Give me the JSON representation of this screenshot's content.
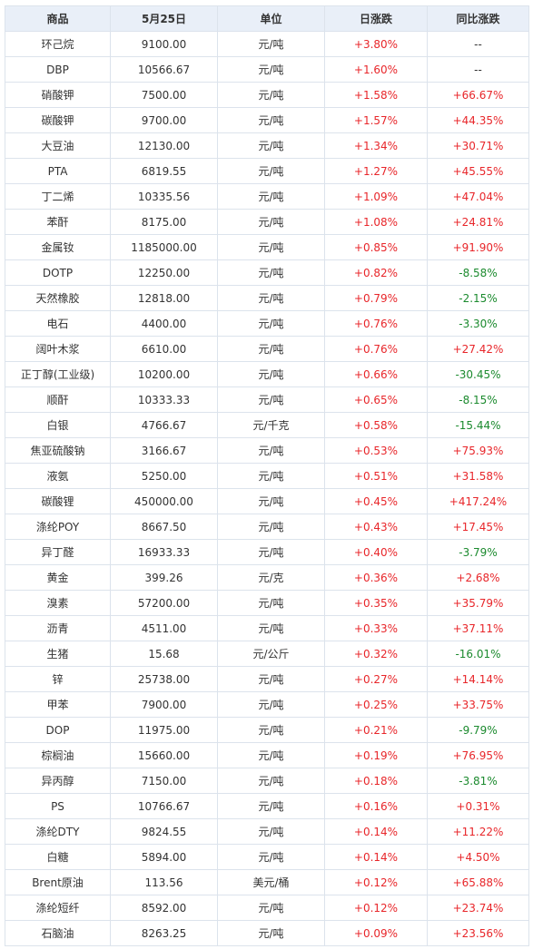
{
  "headers": [
    "商品",
    "5月25日",
    "单位",
    "日涨跌",
    "同比涨跌"
  ],
  "colors": {
    "up": "#e8262a",
    "down": "#1b8a2e",
    "header_bg": "#e9eff8",
    "border": "#dce3ec"
  },
  "rows": [
    {
      "name": "环己烷",
      "price": "9100.00",
      "unit": "元/吨",
      "day": "+3.80%",
      "yoy": "--"
    },
    {
      "name": "DBP",
      "price": "10566.67",
      "unit": "元/吨",
      "day": "+1.60%",
      "yoy": "--"
    },
    {
      "name": "硝酸钾",
      "price": "7500.00",
      "unit": "元/吨",
      "day": "+1.58%",
      "yoy": "+66.67%"
    },
    {
      "name": "碳酸钾",
      "price": "9700.00",
      "unit": "元/吨",
      "day": "+1.57%",
      "yoy": "+44.35%"
    },
    {
      "name": "大豆油",
      "price": "12130.00",
      "unit": "元/吨",
      "day": "+1.34%",
      "yoy": "+30.71%"
    },
    {
      "name": "PTA",
      "price": "6819.55",
      "unit": "元/吨",
      "day": "+1.27%",
      "yoy": "+45.55%"
    },
    {
      "name": "丁二烯",
      "price": "10335.56",
      "unit": "元/吨",
      "day": "+1.09%",
      "yoy": "+47.04%"
    },
    {
      "name": "苯酐",
      "price": "8175.00",
      "unit": "元/吨",
      "day": "+1.08%",
      "yoy": "+24.81%"
    },
    {
      "name": "金属钕",
      "price": "1185000.00",
      "unit": "元/吨",
      "day": "+0.85%",
      "yoy": "+91.90%"
    },
    {
      "name": "DOTP",
      "price": "12250.00",
      "unit": "元/吨",
      "day": "+0.82%",
      "yoy": "-8.58%"
    },
    {
      "name": "天然橡胶",
      "price": "12818.00",
      "unit": "元/吨",
      "day": "+0.79%",
      "yoy": "-2.15%"
    },
    {
      "name": "电石",
      "price": "4400.00",
      "unit": "元/吨",
      "day": "+0.76%",
      "yoy": "-3.30%"
    },
    {
      "name": "阔叶木浆",
      "price": "6610.00",
      "unit": "元/吨",
      "day": "+0.76%",
      "yoy": "+27.42%"
    },
    {
      "name": "正丁醇(工业级)",
      "price": "10200.00",
      "unit": "元/吨",
      "day": "+0.66%",
      "yoy": "-30.45%"
    },
    {
      "name": "顺酐",
      "price": "10333.33",
      "unit": "元/吨",
      "day": "+0.65%",
      "yoy": "-8.15%"
    },
    {
      "name": "白银",
      "price": "4766.67",
      "unit": "元/千克",
      "day": "+0.58%",
      "yoy": "-15.44%"
    },
    {
      "name": "焦亚硫酸钠",
      "price": "3166.67",
      "unit": "元/吨",
      "day": "+0.53%",
      "yoy": "+75.93%"
    },
    {
      "name": "液氨",
      "price": "5250.00",
      "unit": "元/吨",
      "day": "+0.51%",
      "yoy": "+31.58%"
    },
    {
      "name": "碳酸锂",
      "price": "450000.00",
      "unit": "元/吨",
      "day": "+0.45%",
      "yoy": "+417.24%"
    },
    {
      "name": "涤纶POY",
      "price": "8667.50",
      "unit": "元/吨",
      "day": "+0.43%",
      "yoy": "+17.45%"
    },
    {
      "name": "异丁醛",
      "price": "16933.33",
      "unit": "元/吨",
      "day": "+0.40%",
      "yoy": "-3.79%"
    },
    {
      "name": "黄金",
      "price": "399.26",
      "unit": "元/克",
      "day": "+0.36%",
      "yoy": "+2.68%"
    },
    {
      "name": "溴素",
      "price": "57200.00",
      "unit": "元/吨",
      "day": "+0.35%",
      "yoy": "+35.79%"
    },
    {
      "name": "沥青",
      "price": "4511.00",
      "unit": "元/吨",
      "day": "+0.33%",
      "yoy": "+37.11%"
    },
    {
      "name": "生猪",
      "price": "15.68",
      "unit": "元/公斤",
      "day": "+0.32%",
      "yoy": "-16.01%"
    },
    {
      "name": "锌",
      "price": "25738.00",
      "unit": "元/吨",
      "day": "+0.27%",
      "yoy": "+14.14%"
    },
    {
      "name": "甲苯",
      "price": "7900.00",
      "unit": "元/吨",
      "day": "+0.25%",
      "yoy": "+33.75%"
    },
    {
      "name": "DOP",
      "price": "11975.00",
      "unit": "元/吨",
      "day": "+0.21%",
      "yoy": "-9.79%"
    },
    {
      "name": "棕榈油",
      "price": "15660.00",
      "unit": "元/吨",
      "day": "+0.19%",
      "yoy": "+76.95%"
    },
    {
      "name": "异丙醇",
      "price": "7150.00",
      "unit": "元/吨",
      "day": "+0.18%",
      "yoy": "-3.81%"
    },
    {
      "name": "PS",
      "price": "10766.67",
      "unit": "元/吨",
      "day": "+0.16%",
      "yoy": "+0.31%"
    },
    {
      "name": "涤纶DTY",
      "price": "9824.55",
      "unit": "元/吨",
      "day": "+0.14%",
      "yoy": "+11.22%"
    },
    {
      "name": "白糖",
      "price": "5894.00",
      "unit": "元/吨",
      "day": "+0.14%",
      "yoy": "+4.50%"
    },
    {
      "name": "Brent原油",
      "price": "113.56",
      "unit": "美元/桶",
      "day": "+0.12%",
      "yoy": "+65.88%"
    },
    {
      "name": "涤纶短纤",
      "price": "8592.00",
      "unit": "元/吨",
      "day": "+0.12%",
      "yoy": "+23.74%"
    },
    {
      "name": "石脑油",
      "price": "8263.25",
      "unit": "元/吨",
      "day": "+0.09%",
      "yoy": "+23.56%"
    }
  ]
}
